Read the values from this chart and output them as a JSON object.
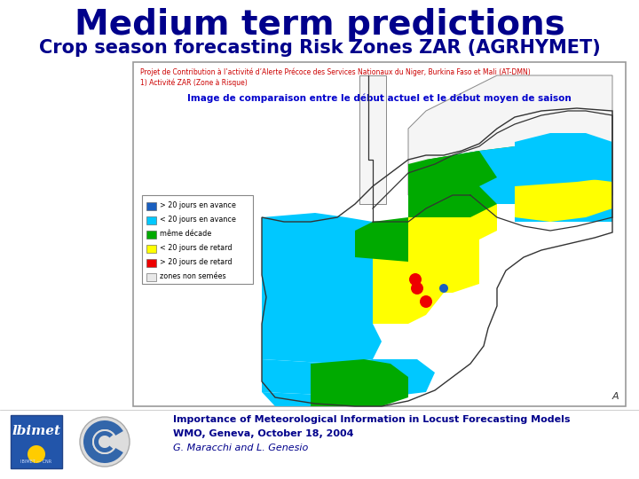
{
  "title": "Medium term predictions",
  "subtitle": "Crop season forecasting Risk Zones ZAR (AGRHYMET)",
  "title_color": "#00008B",
  "subtitle_color": "#00008B",
  "title_fontsize": 28,
  "subtitle_fontsize": 15,
  "box_header_line1": "Projet de Contribution à l’activité d’Alerte Précoce des Services Nationaux du Niger, Burkina Faso et Mali (AT-DMN)",
  "box_header_line2": "1) Activité ZAR (Zone à Risque)",
  "box_header_color": "#CC0000",
  "map_title": "Image de comparaison entre le début actuel et le début moyen de saison",
  "map_title_color": "#0000CC",
  "legend_items": [
    {
      "color": "#1A5FBF",
      "label": "> 20 jours en avance"
    },
    {
      "color": "#00C8FF",
      "label": "< 20 jours en avance"
    },
    {
      "color": "#00AA00",
      "label": "même décade"
    },
    {
      "color": "#FFFF00",
      "label": "< 20 jours de retard"
    },
    {
      "color": "#EE0000",
      "label": "> 20 jours de retard"
    },
    {
      "color": "#E8E8E8",
      "label": "zones non semées"
    }
  ],
  "footer_line1": "Importance of Meteorological Information in Locust Forecasting Models",
  "footer_line2": "WMO, Geneva, October 18, 2004",
  "footer_line3": "G. Maracchi and L. Genesio",
  "footer_color": "#00008B",
  "bg_color": "#FFFFFF",
  "box_border_color": "#999999"
}
